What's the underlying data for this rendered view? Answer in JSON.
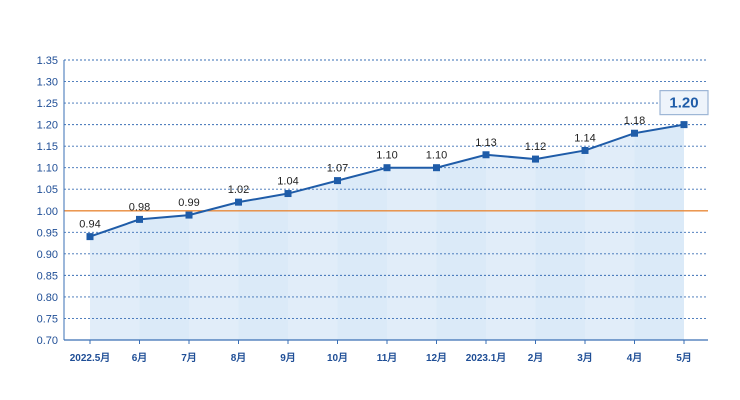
{
  "chart_data": {
    "type": "line",
    "categories": [
      "2022.5月",
      "6月",
      "7月",
      "8月",
      "9月",
      "10月",
      "11月",
      "12月",
      "2023.1月",
      "2月",
      "3月",
      "4月",
      "5月"
    ],
    "values": [
      0.94,
      0.98,
      0.99,
      1.02,
      1.04,
      1.07,
      1.1,
      1.1,
      1.13,
      1.12,
      1.14,
      1.18,
      1.2
    ],
    "value_labels": [
      "0.94",
      "0.98",
      "0.99",
      "1.02",
      "1.04",
      "1.07",
      "1.10",
      "1.10",
      "1.13",
      "1.12",
      "1.14",
      "1.18",
      "1.20"
    ],
    "title": "",
    "xlabel": "",
    "ylabel": "",
    "ylim": [
      0.7,
      1.35
    ],
    "yticks": [
      "0.70",
      "0.75",
      "0.80",
      "0.85",
      "0.90",
      "0.95",
      "1.00",
      "1.05",
      "1.10",
      "1.15",
      "1.20",
      "1.25",
      "1.30",
      "1.35"
    ],
    "reference_line": 1.0,
    "grid": true,
    "legend": "none",
    "highlight_index": 12,
    "colors": {
      "line": "#1f5ca8",
      "marker": "#1f5ca8",
      "grid": "#3a6fb5",
      "reference": "#e8893a",
      "fill": "#cfe3f5",
      "axis_text": "#1f4e96"
    }
  }
}
